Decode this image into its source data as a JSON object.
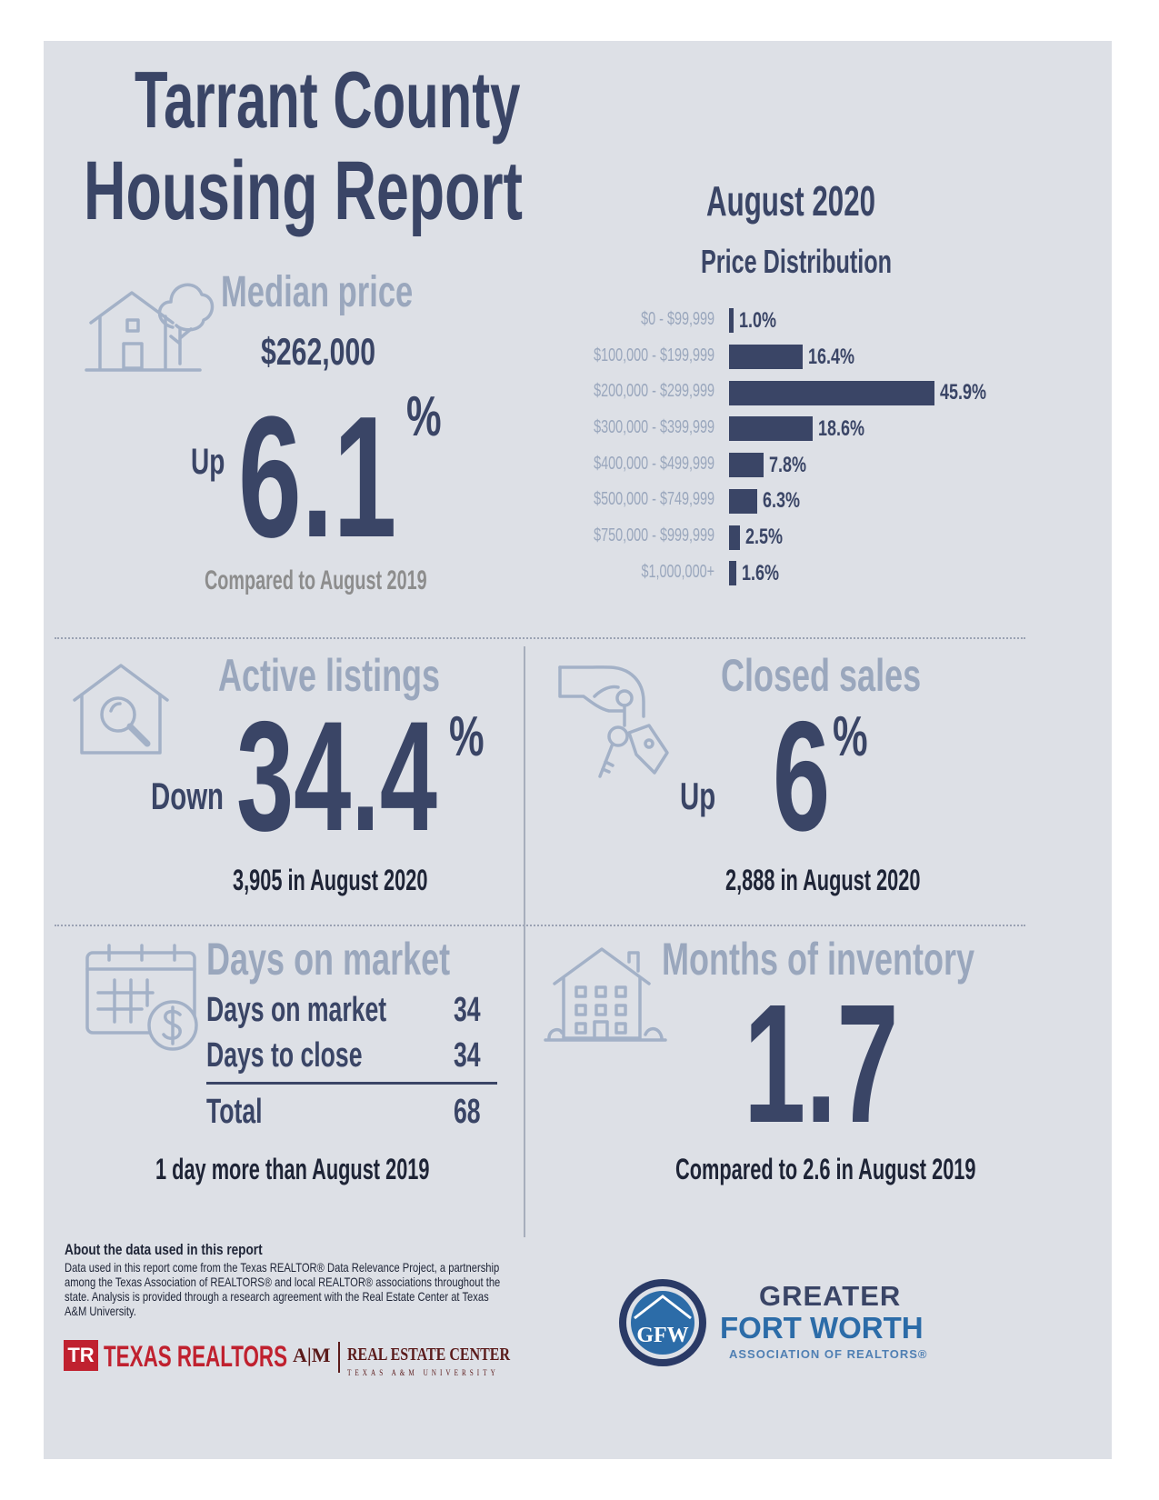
{
  "report": {
    "title_line1": "Tarrant County",
    "title_line2": "Housing Report",
    "period": "August 2020"
  },
  "median_price": {
    "heading": "Median price",
    "value": "$262,000",
    "direction": "Up",
    "change": "6.1",
    "unit": "%",
    "note": "Compared to August 2019"
  },
  "chart_data": {
    "type": "bar",
    "title": "Price Distribution",
    "orientation": "horizontal",
    "categories": [
      "$0 - $99,999",
      "$100,000 - $199,999",
      "$200,000 - $299,999",
      "$300,000 - $399,999",
      "$400,000 - $499,999",
      "$500,000 - $749,999",
      "$750,000 - $999,999",
      "$1,000,000+"
    ],
    "values": [
      1.0,
      16.4,
      45.9,
      18.6,
      7.8,
      6.3,
      2.5,
      1.6
    ],
    "value_labels": [
      "1.0%",
      "16.4%",
      "45.9%",
      "18.6%",
      "7.8%",
      "6.3%",
      "2.5%",
      "1.6%"
    ],
    "unit": "%",
    "color": "#3a4566"
  },
  "active_listings": {
    "heading": "Active listings",
    "direction": "Down",
    "change": "34.4",
    "unit": "%",
    "note": "3,905 in August 2020"
  },
  "closed_sales": {
    "heading": "Closed sales",
    "direction": "Up",
    "change": "6",
    "unit": "%",
    "note": "2,888 in August 2020"
  },
  "days_on_market": {
    "heading": "Days on market",
    "rows": [
      {
        "label": "Days on market",
        "value": "34"
      },
      {
        "label": "Days to close",
        "value": "34"
      }
    ],
    "total_label": "Total",
    "total_value": "68",
    "note": "1 day more than August 2019"
  },
  "months_inventory": {
    "heading": "Months of inventory",
    "value": "1.7",
    "note": "Compared to 2.6 in August 2019"
  },
  "footer": {
    "about_title": "About the data used in this report",
    "about_text": "Data used in this report come from the Texas REALTOR® Data Relevance Project, a partnership among the Texas Association of REALTORS® and local REALTOR® associations throughout the state. Analysis is provided through a research agreement with the Real Estate Center at Texas A&M University.",
    "texas_realtors": "TEXAS REALTORS",
    "tr_mark": "TR",
    "atm_mark": "A|M",
    "rec_name": "REAL ESTATE CENTER",
    "rec_sub": "TEXAS A&M UNIVERSITY",
    "gfw_mark": "GFW",
    "gfw_line1": "GREATER",
    "gfw_line2": "FORT WORTH",
    "gfw_line3": "ASSOCIATION OF REALTORS®"
  },
  "colors": {
    "navy": "#3a4566",
    "slate": "#9aa7bd",
    "panel": "#dde0e6",
    "gfw_blue": "#2c6ca8"
  }
}
